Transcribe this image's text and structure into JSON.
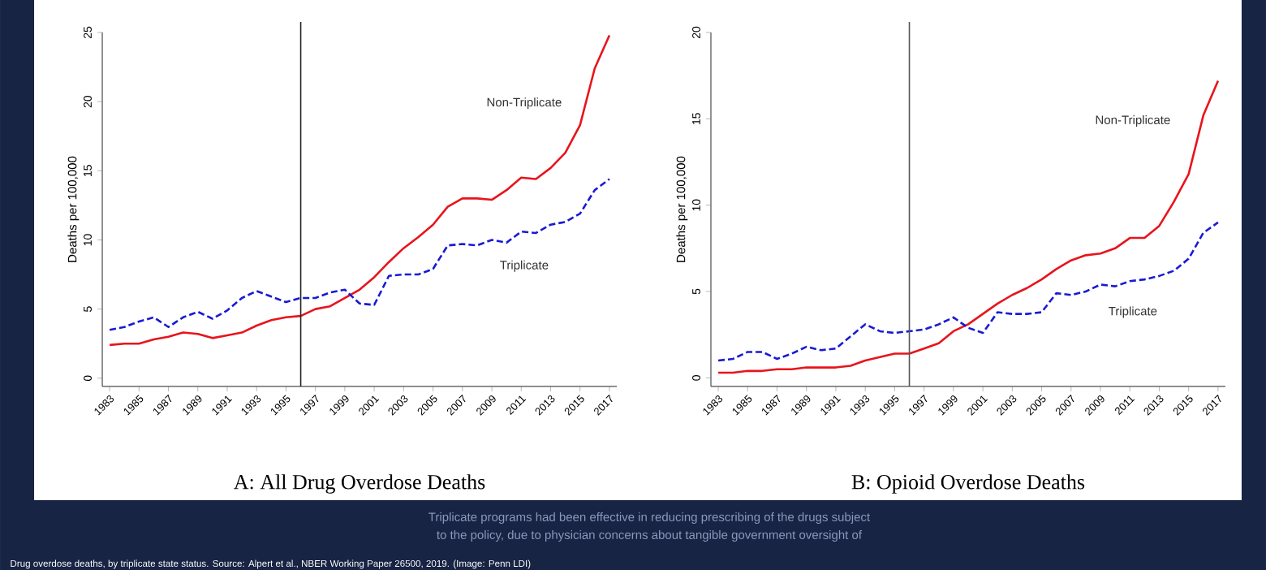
{
  "chart_data": [
    {
      "type": "line",
      "title": "A: All Drug Overdose Deaths",
      "ylabel": "Deaths per 100,000",
      "x": [
        1983,
        1984,
        1985,
        1986,
        1987,
        1988,
        1989,
        1990,
        1991,
        1992,
        1993,
        1994,
        1995,
        1996,
        1997,
        1998,
        1999,
        2000,
        2001,
        2002,
        2003,
        2004,
        2005,
        2006,
        2007,
        2008,
        2009,
        2010,
        2011,
        2012,
        2013,
        2014,
        2015,
        2016,
        2017
      ],
      "series": [
        {
          "name": "Non-Triplicate",
          "color": "#e8141c",
          "line_style": "solid",
          "values": [
            2.4,
            2.5,
            2.5,
            2.8,
            3.0,
            3.3,
            3.2,
            2.9,
            3.1,
            3.3,
            3.8,
            4.2,
            4.4,
            4.5,
            5.0,
            5.2,
            5.8,
            6.4,
            7.3,
            8.4,
            9.4,
            10.2,
            11.1,
            12.4,
            13.0,
            13.0,
            12.9,
            13.6,
            14.5,
            14.4,
            15.2,
            16.3,
            18.3,
            22.4,
            24.8
          ]
        },
        {
          "name": "Triplicate",
          "color": "#1a1ad6",
          "line_style": "dashed",
          "values": [
            3.5,
            3.7,
            4.1,
            4.4,
            3.7,
            4.4,
            4.8,
            4.3,
            4.9,
            5.8,
            6.3,
            5.9,
            5.5,
            5.8,
            5.8,
            6.2,
            6.4,
            5.4,
            5.3,
            7.4,
            7.5,
            7.5,
            7.9,
            9.6,
            9.7,
            9.6,
            10.0,
            9.8,
            10.6,
            10.5,
            11.1,
            11.3,
            11.9,
            13.6,
            14.4
          ]
        }
      ],
      "xlim": [
        1982.5,
        2017.5
      ],
      "xticks": [
        1983,
        1985,
        1987,
        1989,
        1991,
        1993,
        1995,
        1997,
        1999,
        2001,
        2003,
        2005,
        2007,
        2009,
        2011,
        2013,
        2015,
        2017
      ],
      "ylim": [
        -0.6,
        25
      ],
      "yticks": [
        0,
        5,
        10,
        15,
        20,
        25
      ],
      "ref_lines": [
        {
          "axis": "x",
          "value": 1996,
          "color": "#222222"
        }
      ],
      "grid": false,
      "marker": "none",
      "annotations": [
        "Triplicate programs had been effective in reducing prescribing of the drugs subject",
        "to the policy, due to physician concerns about tangible government oversight of",
        "Drug overdose deaths, by triplicate state status. Source: Alpert et al., NBER Working Paper 26500, 2019. (Image: Penn LDI)"
      ]
    },
    {
      "type": "line",
      "title": "B: Opioid Overdose Deaths",
      "ylabel": "Deaths per 100,000",
      "x": [
        1983,
        1984,
        1985,
        1986,
        1987,
        1988,
        1989,
        1990,
        1991,
        1992,
        1993,
        1994,
        1995,
        1996,
        1997,
        1998,
        1999,
        2000,
        2001,
        2002,
        2003,
        2004,
        2005,
        2006,
        2007,
        2008,
        2009,
        2010,
        2011,
        2012,
        2013,
        2014,
        2015,
        2016,
        2017
      ],
      "series": [
        {
          "name": "Non-Triplicate",
          "color": "#e8141c",
          "line_style": "solid",
          "values": [
            0.3,
            0.3,
            0.4,
            0.4,
            0.5,
            0.5,
            0.6,
            0.6,
            0.6,
            0.7,
            1.0,
            1.2,
            1.4,
            1.4,
            1.7,
            2.0,
            2.7,
            3.1,
            3.7,
            4.3,
            4.8,
            5.2,
            5.7,
            6.3,
            6.8,
            7.1,
            7.2,
            7.5,
            8.1,
            8.1,
            8.8,
            10.2,
            11.8,
            15.2,
            17.2
          ]
        },
        {
          "name": "Triplicate",
          "color": "#1a1ad6",
          "line_style": "dashed",
          "values": [
            1.0,
            1.1,
            1.5,
            1.5,
            1.1,
            1.4,
            1.8,
            1.6,
            1.7,
            2.4,
            3.1,
            2.7,
            2.6,
            2.7,
            2.8,
            3.1,
            3.5,
            2.9,
            2.6,
            3.8,
            3.7,
            3.7,
            3.8,
            4.9,
            4.8,
            5.0,
            5.4,
            5.3,
            5.6,
            5.7,
            5.9,
            6.2,
            6.9,
            8.4,
            9.0
          ]
        }
      ],
      "xlim": [
        1982.5,
        2017.5
      ],
      "xticks": [
        1983,
        1985,
        1987,
        1989,
        1991,
        1993,
        1995,
        1997,
        1999,
        2001,
        2003,
        2005,
        2007,
        2009,
        2011,
        2013,
        2015,
        2017
      ],
      "ylim": [
        -0.5,
        20
      ],
      "yticks": [
        0,
        5,
        10,
        15,
        20
      ],
      "ref_lines": [
        {
          "axis": "x",
          "value": 1996,
          "color": "#555555"
        }
      ],
      "grid": false,
      "marker": "none"
    }
  ]
}
